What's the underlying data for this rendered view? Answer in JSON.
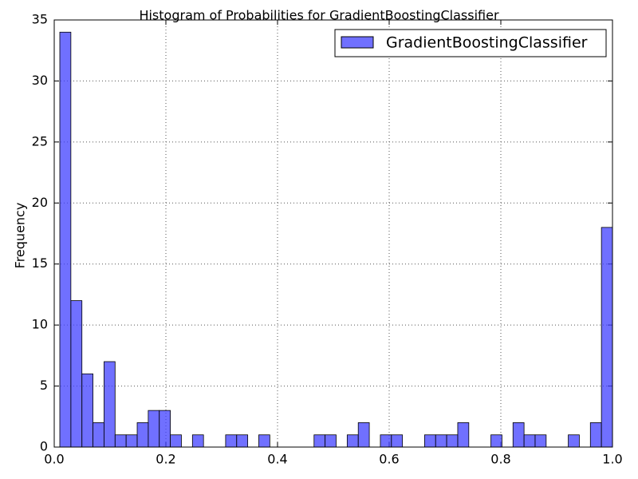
{
  "chart_data": {
    "type": "histogram",
    "title": "Histogram of Probabilities for GradientBoostingClassifier",
    "ylabel": "Frequency",
    "series": [
      {
        "name": "GradientBoostingClassifier",
        "color": "#4040ff",
        "bins": [
          0.01,
          0.0298,
          0.0496,
          0.0694,
          0.0892,
          0.109,
          0.1288,
          0.1486,
          0.1684,
          0.1882,
          0.208,
          0.2278,
          0.2476,
          0.2674,
          0.2872,
          0.307,
          0.3268,
          0.3466,
          0.3664,
          0.3862,
          0.406,
          0.4258,
          0.4456,
          0.4654,
          0.4852,
          0.505,
          0.5248,
          0.5446,
          0.5644,
          0.5842,
          0.604,
          0.6238,
          0.6436,
          0.6634,
          0.6832,
          0.703,
          0.7228,
          0.7426,
          0.7624,
          0.7822,
          0.802,
          0.8218,
          0.8416,
          0.8614,
          0.8812,
          0.901,
          0.9208,
          0.9406,
          0.9604,
          0.9802,
          1.0
        ],
        "values": [
          34,
          12,
          6,
          2,
          7,
          1,
          1,
          2,
          3,
          3,
          1,
          0,
          1,
          0,
          0,
          1,
          1,
          0,
          1,
          0,
          0,
          0,
          0,
          1,
          1,
          0,
          1,
          2,
          0,
          1,
          1,
          0,
          0,
          1,
          1,
          1,
          2,
          0,
          0,
          1,
          0,
          2,
          1,
          1,
          0,
          0,
          1,
          0,
          2,
          18
        ]
      }
    ],
    "xlim": [
      0,
      1
    ],
    "xticks": [
      {
        "value": 0,
        "label": "0.0"
      },
      0.2,
      0.4,
      0.6,
      0.8,
      {
        "value": 1,
        "label": "1.0"
      }
    ],
    "ylim": [
      0,
      35
    ],
    "yticks": [
      0,
      5,
      10,
      15,
      20,
      25,
      30,
      35
    ],
    "grid": true,
    "legend": "upper right"
  }
}
